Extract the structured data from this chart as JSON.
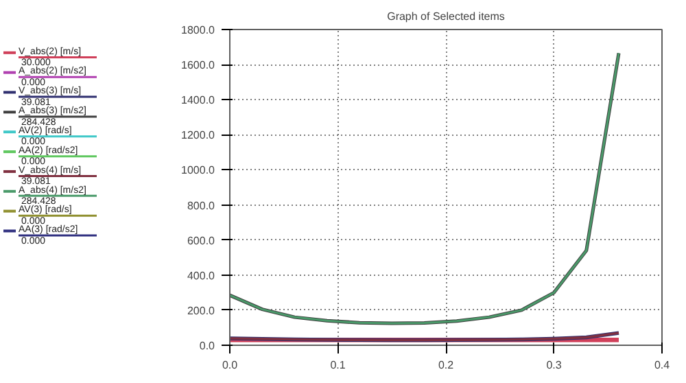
{
  "chart_data": {
    "type": "line",
    "title": "Graph of Selected items",
    "x": [
      0,
      0.03,
      0.06,
      0.09,
      0.12,
      0.15,
      0.18,
      0.21,
      0.24,
      0.27,
      0.3,
      0.33,
      0.36
    ],
    "series": [
      {
        "name": "V_abs(2) [m/s]",
        "color": "#d0405a",
        "values": [
          30,
          30,
          30,
          30,
          30,
          30,
          30,
          30,
          30,
          30,
          30,
          30,
          30
        ]
      },
      {
        "name": "A_abs(2) [m/s2]",
        "color": "#b040b0",
        "values": [
          null,
          null,
          null,
          null,
          null,
          null,
          null,
          null,
          null,
          null,
          null,
          null,
          null
        ]
      },
      {
        "name": "V_abs(3) [m/s]",
        "color": "#303070",
        "values": [
          39,
          36,
          33,
          31,
          30,
          29,
          29,
          30,
          31,
          33,
          37,
          45,
          70
        ]
      },
      {
        "name": "A_abs(3) [m/s2]",
        "color": "#404040",
        "values": [
          285,
          205,
          160,
          140,
          128,
          125,
          127,
          138,
          160,
          200,
          300,
          540,
          1665
        ]
      },
      {
        "name": "AV(2) [rad/s]",
        "color": "#40c8c8",
        "values": [
          null,
          null,
          null,
          null,
          null,
          null,
          null,
          null,
          null,
          null,
          null,
          null,
          null
        ]
      },
      {
        "name": "AA(2) [rad/s2]",
        "color": "#60c860",
        "values": [
          null,
          null,
          null,
          null,
          null,
          null,
          null,
          null,
          null,
          null,
          null,
          null,
          null
        ]
      },
      {
        "name": "V_abs(4) [m/s]",
        "color": "#803040",
        "values": [
          39,
          36,
          33,
          31,
          30,
          29,
          29,
          30,
          31,
          33,
          37,
          45,
          70
        ]
      },
      {
        "name": "A_abs(4) [m/s2]",
        "color": "#4a9a6a",
        "values": [
          285,
          205,
          160,
          140,
          128,
          125,
          127,
          138,
          160,
          200,
          300,
          540,
          1665
        ]
      },
      {
        "name": "AV(3) [rad/s]",
        "color": "#909030",
        "values": [
          null,
          null,
          null,
          null,
          null,
          null,
          null,
          null,
          null,
          null,
          null,
          null,
          null
        ]
      },
      {
        "name": "AA(3) [rad/s2]",
        "color": "#303080",
        "values": [
          null,
          null,
          null,
          null,
          null,
          null,
          null,
          null,
          null,
          null,
          null,
          null,
          null
        ]
      }
    ],
    "annotations": [
      "30.000",
      "0.000",
      "39.081",
      "284.428",
      "0.000",
      "0.000",
      "39.081",
      "284.428",
      "0.000",
      "0.000"
    ],
    "xlim": [
      0,
      0.4
    ],
    "ylim": [
      0,
      1800
    ],
    "xticks": [
      {
        "value": 0,
        "label": "0.0"
      },
      {
        "value": 0.1,
        "label": "0.1"
      },
      {
        "value": 0.2,
        "label": "0.2"
      },
      {
        "value": 0.3,
        "label": "0.3"
      },
      {
        "value": 0.4,
        "label": "0.4"
      }
    ],
    "yticks": [
      {
        "value": 0,
        "label": "0.0"
      },
      {
        "value": 200,
        "label": "200.0"
      },
      {
        "value": 400,
        "label": "400.0"
      },
      {
        "value": 600,
        "label": "600.0"
      },
      {
        "value": 800,
        "label": "800.0"
      },
      {
        "value": 1000,
        "label": "1000.0"
      },
      {
        "value": 1200,
        "label": "1200.0"
      },
      {
        "value": 1400,
        "label": "1400.0"
      },
      {
        "value": 1600,
        "label": "1600.0"
      },
      {
        "value": 1800,
        "label": "1800.0"
      }
    ],
    "grid": true,
    "legend": "left",
    "marker": "none",
    "line_style": "solid"
  }
}
